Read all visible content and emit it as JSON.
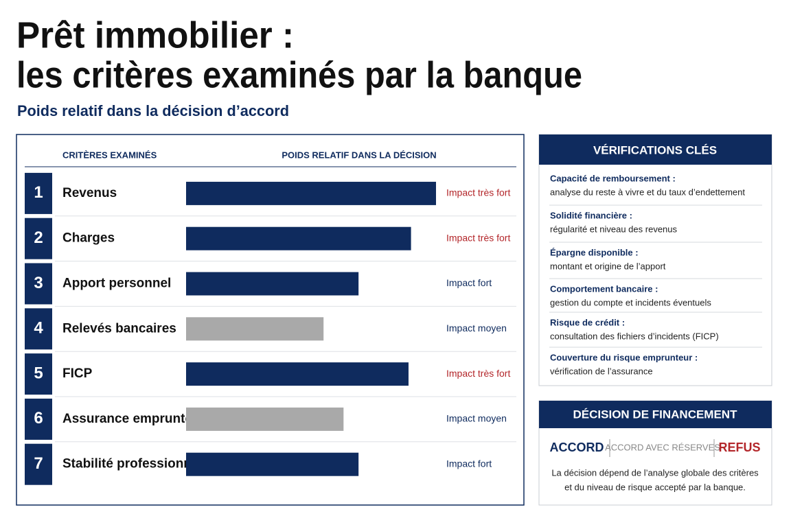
{
  "chart_data": {
    "type": "bar",
    "title": [
      "Prêt immobilier :",
      "les critères examinés par la banque"
    ],
    "subtitle": "Poids relatif dans la décision d’accord",
    "column_headers": [
      "CRITÈRES EXAMINÉS",
      "POIDS RELATIF DANS LA DÉCISION"
    ],
    "ranks": [
      1,
      2,
      3,
      4,
      5,
      6,
      7
    ],
    "categories": [
      "Revenus",
      "Charges",
      "Apport personnel",
      "Relevés bancaires",
      "FICP",
      "Assurance emprunteur",
      "Stabilité professionnelle"
    ],
    "values": [
      100,
      90,
      69,
      55,
      89,
      63,
      69
    ],
    "xlim": [
      0,
      100
    ],
    "colors": [
      "#0f2b5e",
      "#0f2b5e",
      "#0f2b5e",
      "#a9a9a9",
      "#0f2b5e",
      "#a9a9a9",
      "#0f2b5e"
    ],
    "impact_labels": [
      "Impact très fort",
      "Impact très fort",
      "Impact fort",
      "Impact moyen",
      "Impact très fort",
      "Impact moyen",
      "Impact fort"
    ],
    "impact_colors": [
      "#b3262a",
      "#b3262a",
      "#0f2b5e",
      "#0f2b5e",
      "#b3262a",
      "#0f2b5e",
      "#0f2b5e"
    ]
  },
  "verifications": {
    "title": "VÉRIFICATIONS CLÉS",
    "items": [
      {
        "label": "Capacité de remboursement :",
        "text": "analyse du reste à vivre et du taux d’endettement"
      },
      {
        "label": "Solidité financière :",
        "text": "régularité et niveau des revenus"
      },
      {
        "label": "Épargne disponible :",
        "text": "montant et origine de l’apport"
      },
      {
        "label": "Comportement bancaire :",
        "text": "gestion du compte et incidents éventuels"
      },
      {
        "label": "Risque de crédit :",
        "text": "consultation des fichiers d’incidents (FICP)"
      },
      {
        "label": "Couverture du risque emprunteur :",
        "text": "vérification de l’assurance"
      }
    ]
  },
  "decision": {
    "title": "DÉCISION DE FINANCEMENT",
    "options": [
      "ACCORD",
      "ACCORD AVEC RÉSERVES",
      "REFUS"
    ],
    "note": [
      "La décision dépend de l’analyse globale des critères",
      "et du niveau de risque accepté par la banque."
    ]
  }
}
